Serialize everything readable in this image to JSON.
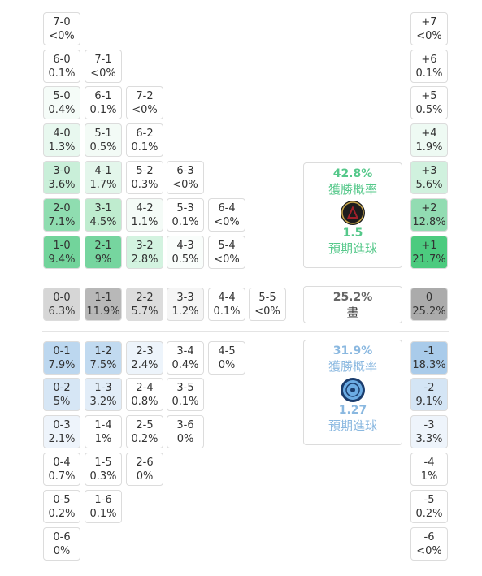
{
  "colors": {
    "home_accent": "#55c88a",
    "away_accent": "#8ab8e0",
    "draw_accent": "#666666"
  },
  "home_wins": {
    "cells": [
      {
        "score": "7-0",
        "prob": "<0%"
      },
      {
        "score": "6-0",
        "prob": "0.1%"
      },
      {
        "score": "7-1",
        "prob": "<0%"
      },
      {
        "score": "5-0",
        "prob": "0.4%"
      },
      {
        "score": "6-1",
        "prob": "0.1%"
      },
      {
        "score": "7-2",
        "prob": "<0%"
      },
      {
        "score": "4-0",
        "prob": "1.3%"
      },
      {
        "score": "5-1",
        "prob": "0.5%"
      },
      {
        "score": "6-2",
        "prob": "0.1%"
      },
      {
        "score": "3-0",
        "prob": "3.6%"
      },
      {
        "score": "4-1",
        "prob": "1.7%"
      },
      {
        "score": "5-2",
        "prob": "0.3%"
      },
      {
        "score": "6-3",
        "prob": "<0%"
      },
      {
        "score": "2-0",
        "prob": "7.1%"
      },
      {
        "score": "3-1",
        "prob": "4.5%"
      },
      {
        "score": "4-2",
        "prob": "1.1%"
      },
      {
        "score": "5-3",
        "prob": "0.1%"
      },
      {
        "score": "6-4",
        "prob": "<0%"
      },
      {
        "score": "1-0",
        "prob": "9.4%"
      },
      {
        "score": "2-1",
        "prob": "9%"
      },
      {
        "score": "3-2",
        "prob": "2.8%"
      },
      {
        "score": "4-3",
        "prob": "0.5%"
      },
      {
        "score": "5-4",
        "prob": "<0%"
      }
    ]
  },
  "draws": {
    "cells": [
      {
        "score": "0-0",
        "prob": "6.3%"
      },
      {
        "score": "1-1",
        "prob": "11.9%"
      },
      {
        "score": "2-2",
        "prob": "5.7%"
      },
      {
        "score": "3-3",
        "prob": "1.2%"
      },
      {
        "score": "4-4",
        "prob": "0.1%"
      },
      {
        "score": "5-5",
        "prob": "<0%"
      }
    ]
  },
  "away_wins": {
    "cells": [
      {
        "score": "0-1",
        "prob": "7.9%"
      },
      {
        "score": "1-2",
        "prob": "7.5%"
      },
      {
        "score": "2-3",
        "prob": "2.4%"
      },
      {
        "score": "3-4",
        "prob": "0.4%"
      },
      {
        "score": "4-5",
        "prob": "0%"
      },
      {
        "score": "0-2",
        "prob": "5%"
      },
      {
        "score": "1-3",
        "prob": "3.2%"
      },
      {
        "score": "2-4",
        "prob": "0.8%"
      },
      {
        "score": "3-5",
        "prob": "0.1%"
      },
      {
        "score": "0-3",
        "prob": "2.1%"
      },
      {
        "score": "1-4",
        "prob": "1%"
      },
      {
        "score": "2-5",
        "prob": "0.2%"
      },
      {
        "score": "3-6",
        "prob": "0%"
      },
      {
        "score": "0-4",
        "prob": "0.7%"
      },
      {
        "score": "1-5",
        "prob": "0.3%"
      },
      {
        "score": "2-6",
        "prob": "0%"
      },
      {
        "score": "0-5",
        "prob": "0.2%"
      },
      {
        "score": "1-6",
        "prob": "0.1%"
      },
      {
        "score": "0-6",
        "prob": "0%"
      }
    ]
  },
  "margins": {
    "home": [
      {
        "margin": "+7",
        "prob": "<0%"
      },
      {
        "margin": "+6",
        "prob": "0.1%"
      },
      {
        "margin": "+5",
        "prob": "0.5%"
      },
      {
        "margin": "+4",
        "prob": "1.9%"
      },
      {
        "margin": "+3",
        "prob": "5.6%"
      },
      {
        "margin": "+2",
        "prob": "12.8%"
      },
      {
        "margin": "+1",
        "prob": "21.7%"
      }
    ],
    "draw": {
      "margin": "0",
      "prob": "25.2%"
    },
    "away": [
      {
        "margin": "-1",
        "prob": "18.3%"
      },
      {
        "margin": "-2",
        "prob": "9.1%"
      },
      {
        "margin": "-3",
        "prob": "3.3%"
      },
      {
        "margin": "-4",
        "prob": "1%"
      },
      {
        "margin": "-5",
        "prob": "0.2%"
      },
      {
        "margin": "-6",
        "prob": "<0%"
      }
    ]
  },
  "home_summary": {
    "win_pct": "42.8%",
    "win_label": "獲勝概率",
    "logo_icon": "atlanta-united-logo-icon",
    "expected_goals": "1.5",
    "goals_label": "預期進球"
  },
  "draw_summary": {
    "draw_pct": "25.2%",
    "draw_label": "畫"
  },
  "away_summary": {
    "win_pct": "31.9%",
    "win_label": "獲勝概率",
    "logo_icon": "nycfc-logo-icon",
    "expected_goals": "1.27",
    "goals_label": "預期進球"
  }
}
